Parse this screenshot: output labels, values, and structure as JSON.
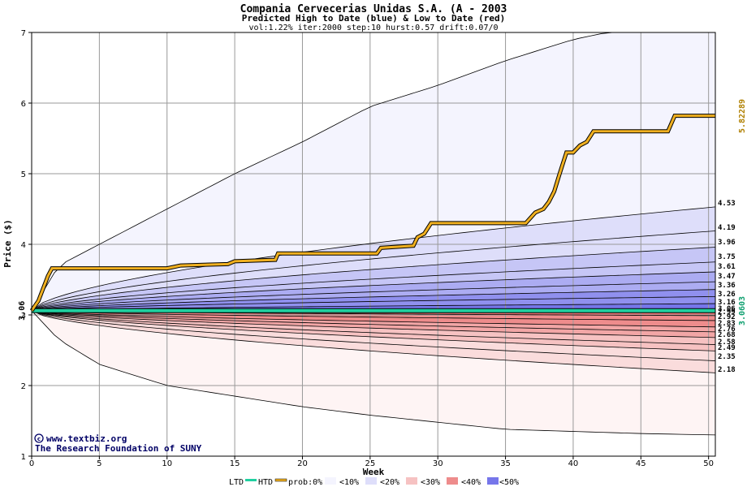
{
  "header": {
    "title": "Compania Cervecerias Unidas S.A. (A - 2003",
    "subtitle": "Predicted High to Date (blue) &  Low to Date (red)",
    "params": "vol:1.22% iter:2000 step:10 hurst:0.57 drift:0.07/0"
  },
  "credits": {
    "site": "www.textbiz.org",
    "org": "The Research Foundation of SUNY"
  },
  "legend": {
    "ltd": "LTD",
    "htd": "HTD",
    "prob0": "prob:0%",
    "p10": "<10%",
    "p20": "<20%",
    "p30": "<30%",
    "p40": "<40%",
    "p50": "<50%"
  },
  "colors": {
    "htd_line": "#f0b020",
    "ltd_line": "#20d0a0",
    "blue_bands": [
      "#f4f4fe",
      "#dedefa",
      "#c6c6f6",
      "#acacf2",
      "#9090ee",
      "#7676ea"
    ],
    "red_bands": [
      "#fef4f4",
      "#fadcdc",
      "#f6c2c2",
      "#f2a6a6",
      "#ee8c8c",
      "#ea7676"
    ],
    "start_label": "#000000",
    "high_label": "#b08000",
    "low_label": "#10a070"
  },
  "chart_data": {
    "type": "area",
    "xlabel": "Week",
    "ylabel": "Price ($)",
    "xlim": [
      0,
      50.5
    ],
    "ylim": [
      1,
      7
    ],
    "x_ticks": [
      0,
      5,
      10,
      15,
      20,
      25,
      30,
      35,
      40,
      45,
      50
    ],
    "y_ticks": [
      1,
      2,
      3,
      4,
      5,
      6,
      7
    ],
    "start_price": 3.06,
    "start_price_label": "3.06",
    "predicted_high_label": "5.82289",
    "predicted_low_label": "3.0603",
    "upper_quantile_end_labels": [
      "4.53",
      "4.19",
      "3.96",
      "3.75",
      "3.61",
      "3.47",
      "3.36",
      "3.26",
      "3.16"
    ],
    "lower_quantile_end_labels": [
      "2.99",
      "2.92",
      "2.83",
      "2.76",
      "2.68",
      "2.58",
      "2.49",
      "2.35",
      "2.18"
    ],
    "lower_extra_label": "3.06",
    "upper_quantile_end_values": [
      4.53,
      4.19,
      3.96,
      3.75,
      3.61,
      3.47,
      3.36,
      3.26,
      3.16
    ],
    "lower_quantile_end_values": [
      2.99,
      2.92,
      2.83,
      2.76,
      2.68,
      2.58,
      2.49,
      2.35,
      2.18
    ],
    "upper_envelope": {
      "x": [
        0,
        2,
        5,
        10,
        15,
        20,
        25,
        30,
        35,
        40,
        42.5,
        50.5
      ],
      "y": [
        3.06,
        3.7,
        4.0,
        4.5,
        5.0,
        5.45,
        5.95,
        6.25,
        6.6,
        6.9,
        7.0,
        7.0
      ]
    },
    "lower_envelope": {
      "x": [
        0,
        2,
        5,
        10,
        15,
        20,
        25,
        30,
        35,
        40,
        45,
        50.5
      ],
      "y": [
        3.06,
        2.65,
        2.3,
        2.0,
        1.85,
        1.7,
        1.58,
        1.48,
        1.38,
        1.35,
        1.32,
        1.3
      ]
    },
    "series": [
      {
        "name": "HTD",
        "x": [
          0,
          0.5,
          1.0,
          1.2,
          1.5,
          4,
          10,
          11,
          14.5,
          15,
          18,
          18.2,
          25.5,
          25.8,
          28.2,
          28.5,
          29.0,
          29.5,
          33,
          36.5,
          37.2,
          37.8,
          38.2,
          38.6,
          39.0,
          39.5,
          40.0,
          40.5,
          41.0,
          41.5,
          47.0,
          47.5,
          50.5
        ],
        "y": [
          3.06,
          3.2,
          3.45,
          3.55,
          3.66,
          3.66,
          3.66,
          3.7,
          3.72,
          3.76,
          3.78,
          3.87,
          3.87,
          3.95,
          3.98,
          4.1,
          4.15,
          4.3,
          4.3,
          4.3,
          4.45,
          4.5,
          4.6,
          4.75,
          5.0,
          5.3,
          5.3,
          5.4,
          5.45,
          5.6,
          5.6,
          5.82,
          5.82
        ]
      },
      {
        "name": "LTD",
        "x": [
          0,
          50.5
        ],
        "y": [
          3.06,
          3.06
        ]
      }
    ],
    "grid": true
  }
}
